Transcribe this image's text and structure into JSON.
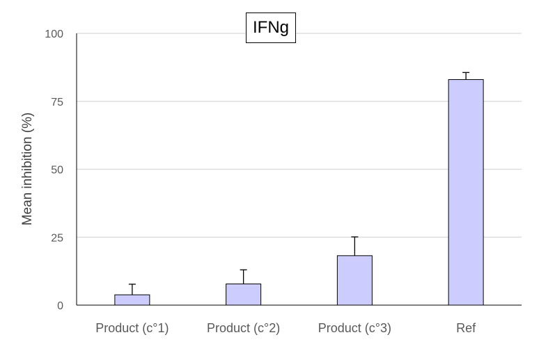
{
  "chart_data": {
    "type": "bar",
    "title": "IFNg",
    "xlabel": "",
    "ylabel": "Mean inhibition (%)",
    "categories": [
      "Product (c°1)",
      "Product (c°2)",
      "Product (c°3)",
      "Ref"
    ],
    "values": [
      3.8,
      7.8,
      18.2,
      83.0
    ],
    "error_plus": [
      3.9,
      5.2,
      6.9,
      2.6
    ],
    "ylim": [
      0,
      100
    ],
    "yticks": [
      0,
      25,
      50,
      75,
      100
    ],
    "grid": true,
    "colors": {
      "bar_fill": "#ccccff",
      "bar_edge": "#000000",
      "grid": "#d9d9d9"
    }
  }
}
